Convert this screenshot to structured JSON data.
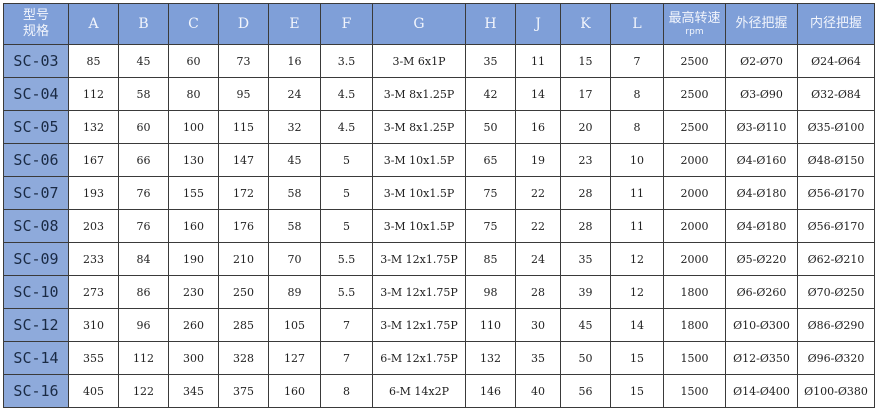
{
  "header": {
    "model": "型号\n规格",
    "model_l1": "型号",
    "model_l2": "规格",
    "cols": [
      "A",
      "B",
      "C",
      "D",
      "E",
      "F",
      "G",
      "H",
      "J",
      "K",
      "L"
    ],
    "speed": "最高转速",
    "speed_unit": "rpm",
    "outer": "外径把握",
    "inner": "内径把握"
  },
  "colors": {
    "header_bg": "#7f9fd8",
    "model_bg": "#8eaadb"
  },
  "rows": [
    [
      "SC-03",
      "85",
      "45",
      "60",
      "73",
      "16",
      "3.5",
      "3-M 6x1P",
      "35",
      "11",
      "15",
      "7",
      "2500",
      "Ø2-Ø70",
      "Ø24-Ø64"
    ],
    [
      "SC-04",
      "112",
      "58",
      "80",
      "95",
      "24",
      "4.5",
      "3-M 8x1.25P",
      "42",
      "14",
      "17",
      "8",
      "2500",
      "Ø3-Ø90",
      "Ø32-Ø84"
    ],
    [
      "SC-05",
      "132",
      "60",
      "100",
      "115",
      "32",
      "4.5",
      "3-M 8x1.25P",
      "50",
      "16",
      "20",
      "8",
      "2500",
      "Ø3-Ø110",
      "Ø35-Ø100"
    ],
    [
      "SC-06",
      "167",
      "66",
      "130",
      "147",
      "45",
      "5",
      "3-M 10x1.5P",
      "65",
      "19",
      "23",
      "10",
      "2000",
      "Ø4-Ø160",
      "Ø48-Ø150"
    ],
    [
      "SC-07",
      "193",
      "76",
      "155",
      "172",
      "58",
      "5",
      "3-M 10x1.5P",
      "75",
      "22",
      "28",
      "11",
      "2000",
      "Ø4-Ø180",
      "Ø56-Ø170"
    ],
    [
      "SC-08",
      "203",
      "76",
      "160",
      "176",
      "58",
      "5",
      "3-M 10x1.5P",
      "75",
      "22",
      "28",
      "11",
      "2000",
      "Ø4-Ø180",
      "Ø56-Ø170"
    ],
    [
      "SC-09",
      "233",
      "84",
      "190",
      "210",
      "70",
      "5.5",
      "3-M 12x1.75P",
      "85",
      "24",
      "35",
      "12",
      "2000",
      "Ø5-Ø220",
      "Ø62-Ø210"
    ],
    [
      "SC-10",
      "273",
      "86",
      "230",
      "250",
      "89",
      "5.5",
      "3-M 12x1.75P",
      "98",
      "28",
      "39",
      "12",
      "1800",
      "Ø6-Ø260",
      "Ø70-Ø250"
    ],
    [
      "SC-12",
      "310",
      "96",
      "260",
      "285",
      "105",
      "7",
      "3-M 12x1.75P",
      "110",
      "30",
      "45",
      "14",
      "1800",
      "Ø10-Ø300",
      "Ø86-Ø290"
    ],
    [
      "SC-14",
      "355",
      "112",
      "300",
      "328",
      "127",
      "7",
      "6-M 12x1.75P",
      "132",
      "35",
      "50",
      "15",
      "1500",
      "Ø12-Ø350",
      "Ø96-Ø320"
    ],
    [
      "SC-16",
      "405",
      "122",
      "345",
      "375",
      "160",
      "8",
      "6-M 14x2P",
      "146",
      "40",
      "56",
      "15",
      "1500",
      "Ø14-Ø400",
      "Ø100-Ø380"
    ]
  ]
}
